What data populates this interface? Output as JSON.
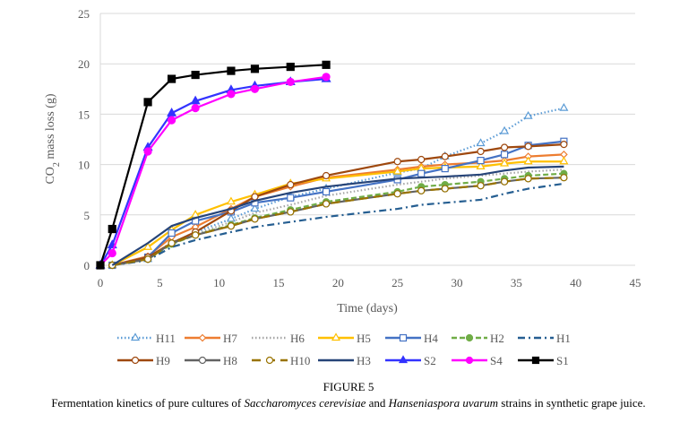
{
  "chart_data": {
    "type": "line",
    "title": "",
    "xlabel": "Time (days)",
    "ylabel": "CO2 mass loss (g)",
    "ylabel_main": "CO",
    "ylabel_sub": "2",
    "ylabel_rest": " mass loss (g)",
    "xlim": [
      0,
      45
    ],
    "ylim": [
      0,
      25
    ],
    "xticks": [
      0,
      5,
      10,
      15,
      20,
      25,
      30,
      35,
      40,
      45
    ],
    "yticks": [
      0,
      5,
      10,
      15,
      20,
      25
    ],
    "grid": "horizontal",
    "legend_position": "bottom",
    "series": [
      {
        "name": "H11",
        "color": "#5b9bd5",
        "dash": "dot",
        "marker": "triangle-open",
        "x": [
          1,
          4,
          6,
          8,
          11,
          13,
          16,
          19,
          25,
          27,
          29,
          32,
          34,
          36,
          39
        ],
        "y": [
          0,
          0.6,
          2.2,
          3.3,
          4.6,
          5.6,
          6.8,
          7.6,
          9.2,
          9.6,
          10.8,
          12.1,
          13.3,
          14.8,
          15.6
        ]
      },
      {
        "name": "H7",
        "color": "#ed7d31",
        "dash": "solid",
        "marker": "diamond-open",
        "x": [
          1,
          4,
          6,
          8,
          11,
          13,
          16,
          19,
          25,
          27,
          29,
          32,
          34,
          36,
          39
        ],
        "y": [
          0,
          0.9,
          2.8,
          3.8,
          5.6,
          6.8,
          7.8,
          8.7,
          9.5,
          9.8,
          10.0,
          10.2,
          10.4,
          10.8,
          11.0
        ]
      },
      {
        "name": "H6",
        "color": "#a5a5a5",
        "dash": "dot",
        "marker": "none",
        "x": [
          1,
          4,
          6,
          8,
          11,
          13,
          16,
          19,
          25,
          27,
          29,
          32,
          34,
          36,
          39
        ],
        "y": [
          0,
          0.7,
          2.3,
          3.1,
          4.3,
          5.2,
          6.0,
          6.9,
          8.0,
          8.3,
          8.6,
          8.9,
          9.1,
          9.3,
          9.5
        ]
      },
      {
        "name": "H5",
        "color": "#ffc000",
        "dash": "solid",
        "marker": "triangle-open",
        "x": [
          1,
          4,
          6,
          8,
          11,
          13,
          16,
          19,
          25,
          27,
          29,
          32,
          34,
          36,
          39
        ],
        "y": [
          0,
          1.8,
          3.5,
          5.0,
          6.3,
          7.0,
          8.1,
          8.6,
          9.3,
          9.6,
          9.7,
          9.8,
          10.1,
          10.3,
          10.3
        ]
      },
      {
        "name": "H4",
        "color": "#4472c4",
        "dash": "solid",
        "marker": "square-open",
        "x": [
          1,
          4,
          6,
          8,
          11,
          13,
          16,
          19,
          25,
          27,
          29,
          32,
          34,
          36,
          39
        ],
        "y": [
          0,
          0.8,
          3.2,
          4.4,
          5.3,
          6.2,
          6.7,
          7.3,
          8.5,
          9.1,
          9.6,
          10.4,
          11.0,
          11.9,
          12.3
        ]
      },
      {
        "name": "H2",
        "color": "#70ad47",
        "dash": "dash",
        "marker": "circle-filled",
        "x": [
          1,
          4,
          6,
          8,
          11,
          13,
          16,
          19,
          25,
          27,
          29,
          32,
          34,
          36,
          39
        ],
        "y": [
          0,
          0.6,
          2.1,
          3.0,
          4.0,
          4.7,
          5.5,
          6.3,
          7.3,
          7.8,
          8.0,
          8.3,
          8.6,
          8.9,
          9.1
        ]
      },
      {
        "name": "H1",
        "color": "#255e91",
        "dash": "dashdot",
        "marker": "none",
        "x": [
          1,
          4,
          6,
          8,
          11,
          13,
          16,
          19,
          25,
          27,
          29,
          32,
          34,
          36,
          39
        ],
        "y": [
          0,
          0.5,
          1.8,
          2.5,
          3.3,
          3.8,
          4.3,
          4.8,
          5.6,
          6.0,
          6.2,
          6.5,
          7.1,
          7.6,
          8.1
        ]
      },
      {
        "name": "H9",
        "color": "#9e480e",
        "dash": "solid",
        "marker": "circle-open",
        "x": [
          1,
          4,
          6,
          8,
          11,
          13,
          16,
          19,
          25,
          27,
          29,
          32,
          34,
          36,
          39
        ],
        "y": [
          0,
          0.8,
          2.2,
          3.3,
          5.4,
          6.8,
          8.0,
          8.9,
          10.3,
          10.5,
          10.8,
          11.3,
          11.7,
          11.8,
          12.0
        ]
      },
      {
        "name": "H8",
        "color": "#636363",
        "dash": "solid",
        "marker": "circle-open",
        "x": [
          1,
          4,
          6,
          8,
          11,
          13,
          16,
          19,
          25,
          27,
          29,
          32,
          34,
          36,
          39
        ],
        "y": [
          0,
          0.6,
          2.2,
          3.0,
          3.9,
          4.6,
          5.3,
          6.1,
          7.1,
          7.4,
          7.6,
          7.9,
          8.3,
          8.6,
          8.7
        ]
      },
      {
        "name": "H10",
        "color": "#997300",
        "dash": "longdash",
        "marker": "circle-open",
        "x": [
          1,
          4,
          6,
          8,
          11,
          13,
          16,
          19,
          25,
          27,
          29,
          32,
          34,
          36,
          39
        ],
        "y": [
          0,
          0.6,
          2.2,
          3.0,
          3.9,
          4.6,
          5.3,
          6.1,
          7.1,
          7.4,
          7.6,
          7.9,
          8.3,
          8.6,
          8.7
        ]
      },
      {
        "name": "H3",
        "color": "#264478",
        "dash": "solid",
        "marker": "none",
        "x": [
          1,
          4,
          6,
          8,
          11,
          13,
          16,
          19,
          25,
          27,
          29,
          32,
          34,
          36,
          39
        ],
        "y": [
          0,
          2.2,
          3.9,
          4.7,
          5.6,
          6.4,
          7.2,
          7.8,
          8.6,
          8.7,
          8.8,
          9.0,
          9.4,
          9.7,
          9.8
        ]
      },
      {
        "name": "S2",
        "color": "#3333ff",
        "dash": "solid",
        "marker": "triangle-filled",
        "x": [
          0,
          1,
          4,
          6,
          8,
          11,
          13,
          16,
          19
        ],
        "y": [
          0,
          2.0,
          11.7,
          15.1,
          16.3,
          17.4,
          17.8,
          18.2,
          18.5
        ]
      },
      {
        "name": "S4",
        "color": "#ff00ff",
        "dash": "solid",
        "marker": "circle-filled",
        "x": [
          0,
          1,
          4,
          6,
          8,
          11,
          13,
          16,
          19
        ],
        "y": [
          0,
          1.2,
          11.3,
          14.4,
          15.6,
          17.0,
          17.5,
          18.2,
          18.7
        ]
      },
      {
        "name": "S1",
        "color": "#000000",
        "dash": "solid",
        "marker": "square-filled",
        "x": [
          0,
          1,
          4,
          6,
          8,
          11,
          13,
          16,
          19
        ],
        "y": [
          0,
          3.6,
          16.2,
          18.5,
          18.9,
          19.3,
          19.5,
          19.7,
          19.9
        ]
      }
    ],
    "legend_rows": [
      [
        "H11",
        "H7",
        "H6",
        "H5",
        "H4",
        "H2",
        "H1"
      ],
      [
        "H9",
        "H8",
        "H10",
        "H3",
        "S2",
        "S4",
        "S1"
      ]
    ]
  },
  "caption": {
    "figure_label": "FIGURE 5",
    "text_1": "Fermentation kinetics of pure cultures of ",
    "italic_1": "Saccharomyces cerevisiae",
    "text_2": " and ",
    "italic_2": "Hanseniaspora uvarum",
    "text_3": " strains in synthetic grape juice."
  }
}
